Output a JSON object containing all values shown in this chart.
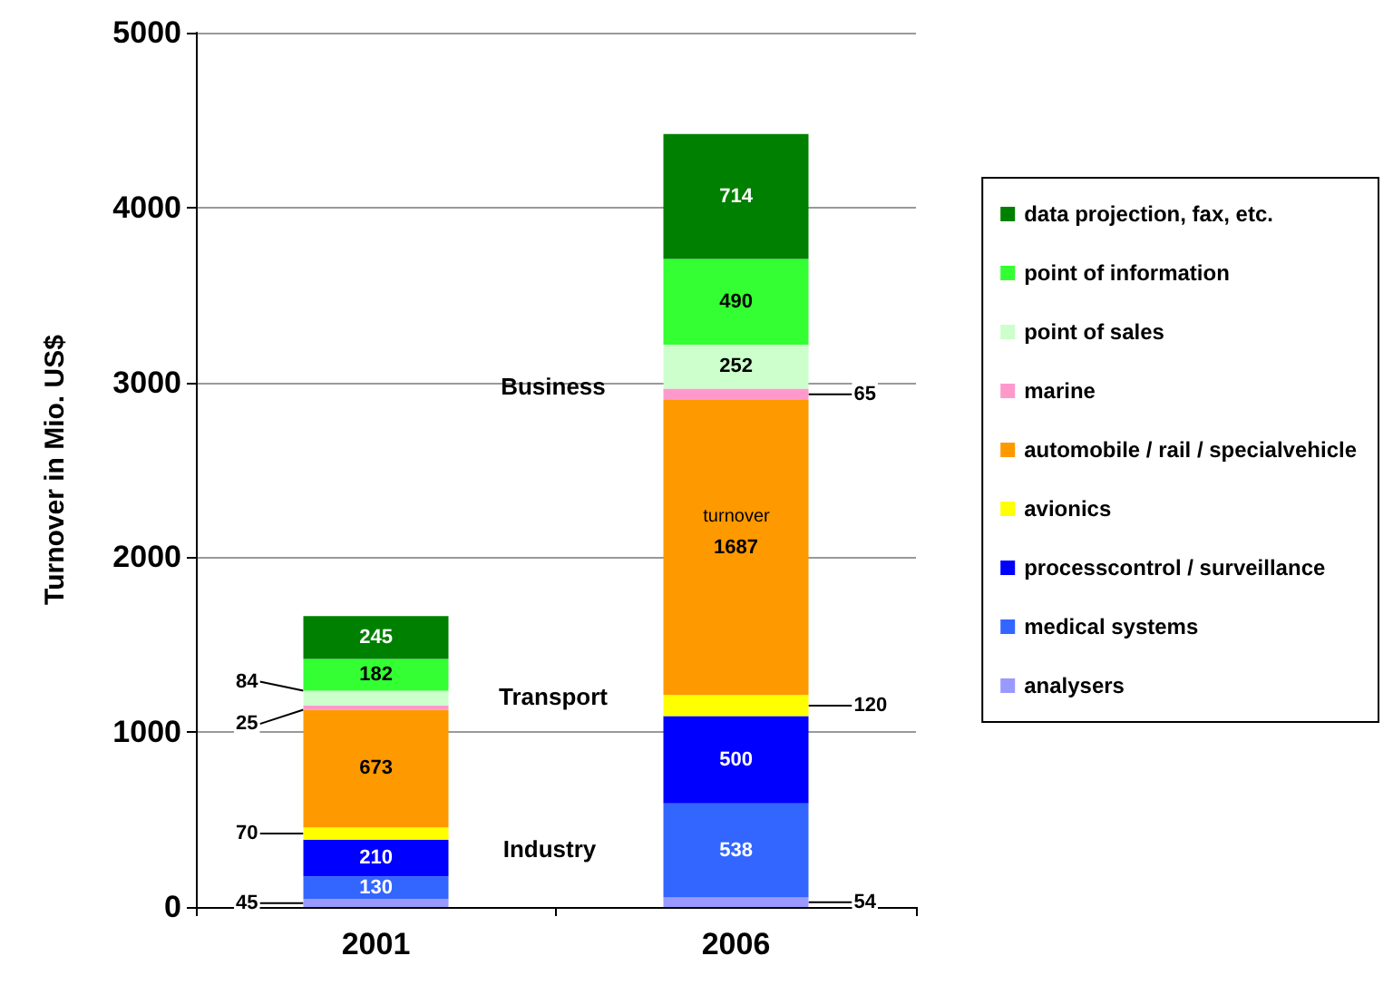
{
  "chart_data": {
    "type": "bar",
    "stacked": true,
    "ylabel": "Turnover in Mio. US$",
    "categories": [
      "2001",
      "2006"
    ],
    "series": [
      {
        "name": "analysers",
        "color": "#9999ff",
        "values": [
          45,
          54
        ]
      },
      {
        "name": "medical systems",
        "color": "#3366ff",
        "values": [
          130,
          538
        ]
      },
      {
        "name": "processcontrol / surveillance",
        "color": "#0000ff",
        "values": [
          210,
          500
        ]
      },
      {
        "name": "avionics",
        "color": "#ffff00",
        "values": [
          70,
          120
        ]
      },
      {
        "name": "automobile / rail / specialvehicle",
        "color": "#ff9900",
        "values": [
          673,
          1687
        ]
      },
      {
        "name": "marine",
        "color": "#ff99cc",
        "values": [
          25,
          65
        ]
      },
      {
        "name": "point of sales",
        "color": "#ccffcc",
        "values": [
          84,
          252
        ]
      },
      {
        "name": "point of information",
        "color": "#33ff33",
        "values": [
          182,
          490
        ]
      },
      {
        "name": "data projection, fax, etc.",
        "color": "#008000",
        "values": [
          245,
          714
        ]
      }
    ],
    "ylim": [
      0,
      5000
    ],
    "yticks": [
      0,
      1000,
      2000,
      3000,
      4000,
      5000
    ],
    "grid": "y",
    "legend": "right",
    "data_labels": true,
    "annotations": [
      "Business",
      "Transport",
      "Industry",
      "turnover"
    ]
  }
}
